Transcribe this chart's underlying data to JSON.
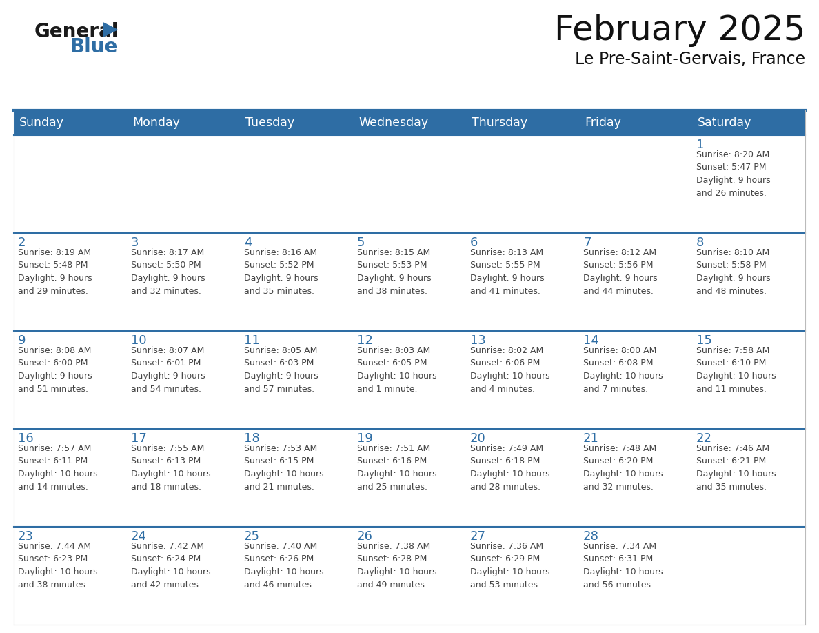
{
  "title": "February 2025",
  "subtitle": "Le Pre-Saint-Gervais, France",
  "header_bg": "#2E6DA4",
  "header_text_color": "#FFFFFF",
  "cell_bg": "#FFFFFF",
  "row_separator_color": "#2E6DA4",
  "day_number_color": "#2E6DA4",
  "cell_text_color": "#444444",
  "days_of_week": [
    "Sunday",
    "Monday",
    "Tuesday",
    "Wednesday",
    "Thursday",
    "Friday",
    "Saturday"
  ],
  "logo_color1": "#1a1a1a",
  "logo_color2": "#2E6DA4",
  "logo_triangle_color": "#2E6DA4",
  "weeks": [
    [
      {
        "day": null,
        "info": null
      },
      {
        "day": null,
        "info": null
      },
      {
        "day": null,
        "info": null
      },
      {
        "day": null,
        "info": null
      },
      {
        "day": null,
        "info": null
      },
      {
        "day": null,
        "info": null
      },
      {
        "day": 1,
        "info": "Sunrise: 8:20 AM\nSunset: 5:47 PM\nDaylight: 9 hours\nand 26 minutes."
      }
    ],
    [
      {
        "day": 2,
        "info": "Sunrise: 8:19 AM\nSunset: 5:48 PM\nDaylight: 9 hours\nand 29 minutes."
      },
      {
        "day": 3,
        "info": "Sunrise: 8:17 AM\nSunset: 5:50 PM\nDaylight: 9 hours\nand 32 minutes."
      },
      {
        "day": 4,
        "info": "Sunrise: 8:16 AM\nSunset: 5:52 PM\nDaylight: 9 hours\nand 35 minutes."
      },
      {
        "day": 5,
        "info": "Sunrise: 8:15 AM\nSunset: 5:53 PM\nDaylight: 9 hours\nand 38 minutes."
      },
      {
        "day": 6,
        "info": "Sunrise: 8:13 AM\nSunset: 5:55 PM\nDaylight: 9 hours\nand 41 minutes."
      },
      {
        "day": 7,
        "info": "Sunrise: 8:12 AM\nSunset: 5:56 PM\nDaylight: 9 hours\nand 44 minutes."
      },
      {
        "day": 8,
        "info": "Sunrise: 8:10 AM\nSunset: 5:58 PM\nDaylight: 9 hours\nand 48 minutes."
      }
    ],
    [
      {
        "day": 9,
        "info": "Sunrise: 8:08 AM\nSunset: 6:00 PM\nDaylight: 9 hours\nand 51 minutes."
      },
      {
        "day": 10,
        "info": "Sunrise: 8:07 AM\nSunset: 6:01 PM\nDaylight: 9 hours\nand 54 minutes."
      },
      {
        "day": 11,
        "info": "Sunrise: 8:05 AM\nSunset: 6:03 PM\nDaylight: 9 hours\nand 57 minutes."
      },
      {
        "day": 12,
        "info": "Sunrise: 8:03 AM\nSunset: 6:05 PM\nDaylight: 10 hours\nand 1 minute."
      },
      {
        "day": 13,
        "info": "Sunrise: 8:02 AM\nSunset: 6:06 PM\nDaylight: 10 hours\nand 4 minutes."
      },
      {
        "day": 14,
        "info": "Sunrise: 8:00 AM\nSunset: 6:08 PM\nDaylight: 10 hours\nand 7 minutes."
      },
      {
        "day": 15,
        "info": "Sunrise: 7:58 AM\nSunset: 6:10 PM\nDaylight: 10 hours\nand 11 minutes."
      }
    ],
    [
      {
        "day": 16,
        "info": "Sunrise: 7:57 AM\nSunset: 6:11 PM\nDaylight: 10 hours\nand 14 minutes."
      },
      {
        "day": 17,
        "info": "Sunrise: 7:55 AM\nSunset: 6:13 PM\nDaylight: 10 hours\nand 18 minutes."
      },
      {
        "day": 18,
        "info": "Sunrise: 7:53 AM\nSunset: 6:15 PM\nDaylight: 10 hours\nand 21 minutes."
      },
      {
        "day": 19,
        "info": "Sunrise: 7:51 AM\nSunset: 6:16 PM\nDaylight: 10 hours\nand 25 minutes."
      },
      {
        "day": 20,
        "info": "Sunrise: 7:49 AM\nSunset: 6:18 PM\nDaylight: 10 hours\nand 28 minutes."
      },
      {
        "day": 21,
        "info": "Sunrise: 7:48 AM\nSunset: 6:20 PM\nDaylight: 10 hours\nand 32 minutes."
      },
      {
        "day": 22,
        "info": "Sunrise: 7:46 AM\nSunset: 6:21 PM\nDaylight: 10 hours\nand 35 minutes."
      }
    ],
    [
      {
        "day": 23,
        "info": "Sunrise: 7:44 AM\nSunset: 6:23 PM\nDaylight: 10 hours\nand 38 minutes."
      },
      {
        "day": 24,
        "info": "Sunrise: 7:42 AM\nSunset: 6:24 PM\nDaylight: 10 hours\nand 42 minutes."
      },
      {
        "day": 25,
        "info": "Sunrise: 7:40 AM\nSunset: 6:26 PM\nDaylight: 10 hours\nand 46 minutes."
      },
      {
        "day": 26,
        "info": "Sunrise: 7:38 AM\nSunset: 6:28 PM\nDaylight: 10 hours\nand 49 minutes."
      },
      {
        "day": 27,
        "info": "Sunrise: 7:36 AM\nSunset: 6:29 PM\nDaylight: 10 hours\nand 53 minutes."
      },
      {
        "day": 28,
        "info": "Sunrise: 7:34 AM\nSunset: 6:31 PM\nDaylight: 10 hours\nand 56 minutes."
      },
      {
        "day": null,
        "info": null
      }
    ]
  ]
}
